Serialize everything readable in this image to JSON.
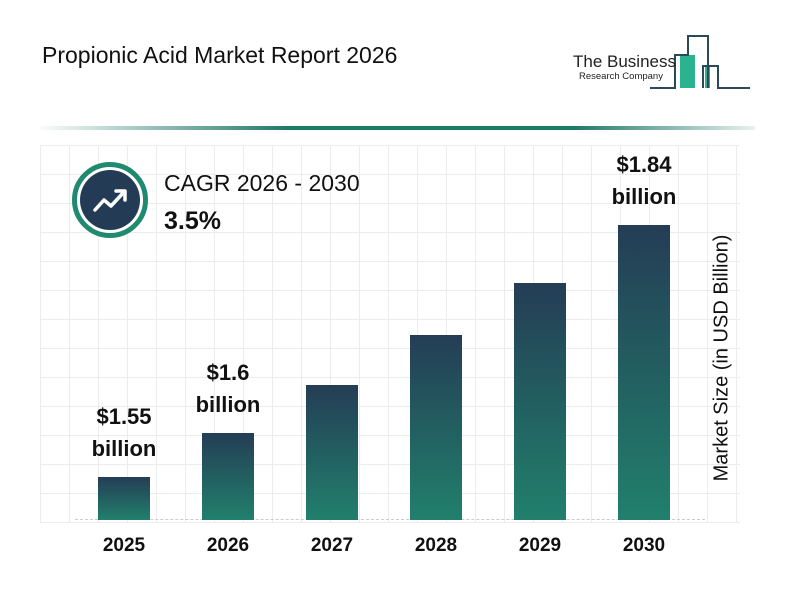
{
  "header": {
    "title": "Propionic Acid Market Report 2026"
  },
  "logo": {
    "line1": "The Business",
    "line2": "Research Company",
    "accent": "#2bb38f"
  },
  "cagr": {
    "label": "CAGR 2026 - 2030",
    "value": "3.5%",
    "icon": "trending-up-icon"
  },
  "colors": {
    "bar_top": "#243d55",
    "bar_bottom": "#21806c",
    "ring": "#1f8a70"
  },
  "chart_data": {
    "type": "bar",
    "categories": [
      "2025",
      "2026",
      "2027",
      "2028",
      "2029",
      "2030"
    ],
    "values": [
      1.55,
      1.6,
      1.656,
      1.714,
      1.774,
      1.84
    ],
    "data_labels": [
      "$1.55 billion",
      "$1.6 billion",
      "",
      "",
      "",
      "$1.84 billion"
    ],
    "data_label_lines": [
      [
        "$1.55",
        "billion"
      ],
      [
        "$1.6",
        "billion"
      ],
      null,
      null,
      null,
      [
        "$1.84",
        "billion"
      ]
    ],
    "ylabel": "Market Size (in USD Billion)",
    "xlabel": "",
    "grid": true
  }
}
